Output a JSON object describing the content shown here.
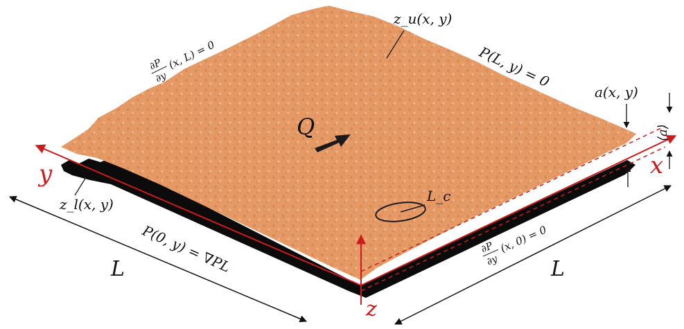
{
  "colors": {
    "upper_surface": "#e59a66",
    "upper_surface_light": "#f2b182",
    "upper_surface_dark": "#c97a48",
    "lower_surface": "#0b0b0b",
    "axis": "#cc1b1b",
    "text": "#111111"
  },
  "labels": {
    "z_u": "z_u(x, y)",
    "z_l": "z_l(x, y)",
    "dPdy_xL_num": "∂P",
    "dPdy_xL_den": "∂y",
    "dPdy_xL_tail": "(x, L) = 0",
    "P_Ly": "P(L, y) = 0",
    "a_xy": "a(x, y)",
    "a_mean": "⟨a⟩",
    "Q": "Q",
    "L_c": "L_c",
    "P_0y": "P(0, y) = ∇PL",
    "dPdy_x0_num": "∂P",
    "dPdy_x0_den": "∂y",
    "dPdy_x0_tail": "(x, 0) = 0",
    "L_left": "L",
    "L_right": "L"
  },
  "axes": {
    "x": "x",
    "y": "y",
    "z": "z"
  }
}
